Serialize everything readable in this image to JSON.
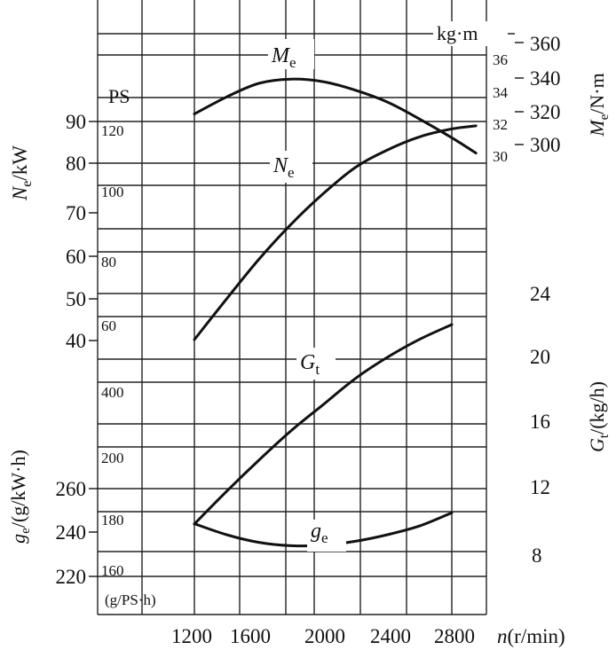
{
  "chart_data": {
    "type": "line",
    "x_axis": {
      "label": "n(r/min)",
      "ticks": [
        1200,
        1600,
        2000,
        2400,
        2800
      ],
      "range": [
        800,
        3000
      ]
    },
    "axes": {
      "Ne_kW": {
        "label_sym": "N",
        "label_sub": "e",
        "label_unit": "/kW",
        "ticks": [
          40,
          50,
          60,
          70,
          80,
          90
        ],
        "range": [
          30,
          100
        ]
      },
      "Ne_PS": {
        "unit": "PS",
        "ticks": [
          60,
          80,
          100,
          120
        ]
      },
      "ge_kWh": {
        "label_sym": "g",
        "label_sub": "e",
        "label_unit": "/(g/kW·h)",
        "ticks": [
          220,
          240,
          260
        ]
      },
      "ge_PSh": {
        "unit": "(g/PS·h)",
        "ticks": [
          160,
          180,
          200,
          400
        ]
      },
      "Me_kgm": {
        "unit": "kg·m",
        "ticks": [
          30,
          32,
          34,
          36
        ]
      },
      "Me_Nm": {
        "label_sym": "M",
        "label_sub": "e",
        "label_unit": "/N·m",
        "ticks": [
          300,
          320,
          340,
          360
        ],
        "range": [
          225,
          390
        ]
      },
      "Gt": {
        "label_sym": "G",
        "label_sub": "t",
        "label_unit": "/(kg/h)",
        "ticks": [
          8,
          12,
          16,
          20,
          24
        ],
        "range": [
          6,
          28
        ]
      }
    },
    "series": [
      {
        "name_sym": "M",
        "name_sub": "e",
        "axis": "Me_Nm",
        "x": [
          1200,
          1400,
          1600,
          1800,
          2000,
          2200,
          2400,
          2600,
          2800,
          2950
        ],
        "y": [
          318,
          328,
          336,
          338.5,
          337,
          332,
          325,
          315,
          304,
          295
        ]
      },
      {
        "name_sym": "N",
        "name_sub": "e",
        "axis": "Ne_kW",
        "x": [
          1200,
          1400,
          1600,
          1800,
          2000,
          2200,
          2400,
          2600,
          2800,
          2950
        ],
        "y": [
          40.2,
          49.5,
          58.5,
          66.5,
          73.5,
          79.5,
          83.5,
          86.5,
          88.3,
          89
        ]
      },
      {
        "name_sym": "G",
        "name_sub": "t",
        "axis": "Gt",
        "x": [
          1200,
          1400,
          1600,
          1800,
          2000,
          2200,
          2400,
          2600,
          2800
        ],
        "y": [
          9.9,
          11.9,
          13.8,
          15.6,
          17.2,
          18.8,
          20.1,
          21.2,
          22.1
        ]
      },
      {
        "name_sym": "g",
        "name_sub": "e",
        "axis": "ge_kWh",
        "x": [
          1200,
          1400,
          1600,
          1800,
          2000,
          2200,
          2400,
          2600,
          2800
        ],
        "y": [
          244,
          239,
          235.5,
          234,
          234.2,
          236,
          239,
          243,
          249
        ]
      }
    ]
  }
}
